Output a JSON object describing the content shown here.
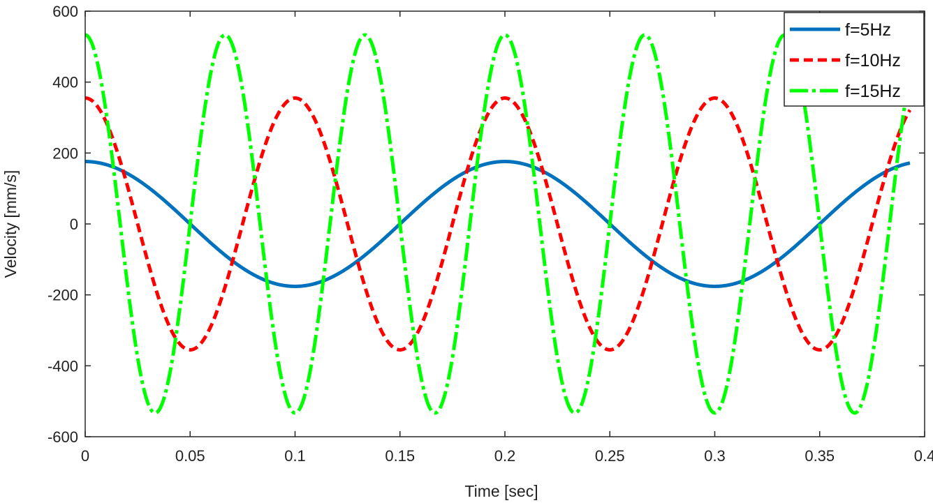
{
  "chart_data": {
    "type": "line",
    "title": "",
    "xlabel": "Time [sec]",
    "ylabel": "Velocity [mm/s]",
    "xlim": [
      0,
      0.4
    ],
    "ylim": [
      -600,
      600
    ],
    "x_end": 0.393,
    "xticks": [
      0,
      0.05,
      0.1,
      0.15,
      0.2,
      0.25,
      0.3,
      0.35,
      0.4
    ],
    "xtick_labels": [
      "0",
      "0.05",
      "0.1",
      "0.15",
      "0.2",
      "0.25",
      "0.3",
      "0.35",
      "0.4"
    ],
    "yticks": [
      600,
      400,
      200,
      0,
      -200,
      -400,
      -600
    ],
    "ytick_labels": [
      "600",
      "400",
      "200",
      "0",
      "-200",
      "-400",
      "-600"
    ],
    "grid": false,
    "legend_position": "top-right",
    "series": [
      {
        "name": "f=5Hz",
        "frequency_hz": 5,
        "amplitude": 176,
        "color": "#0072BD",
        "style": "solid"
      },
      {
        "name": "f=10Hz",
        "frequency_hz": 10,
        "amplitude": 355,
        "color": "#FF0000",
        "style": "dashed"
      },
      {
        "name": "f=15Hz",
        "frequency_hz": 15,
        "amplitude": 533,
        "color": "#00FF00",
        "style": "dashdot"
      }
    ]
  }
}
